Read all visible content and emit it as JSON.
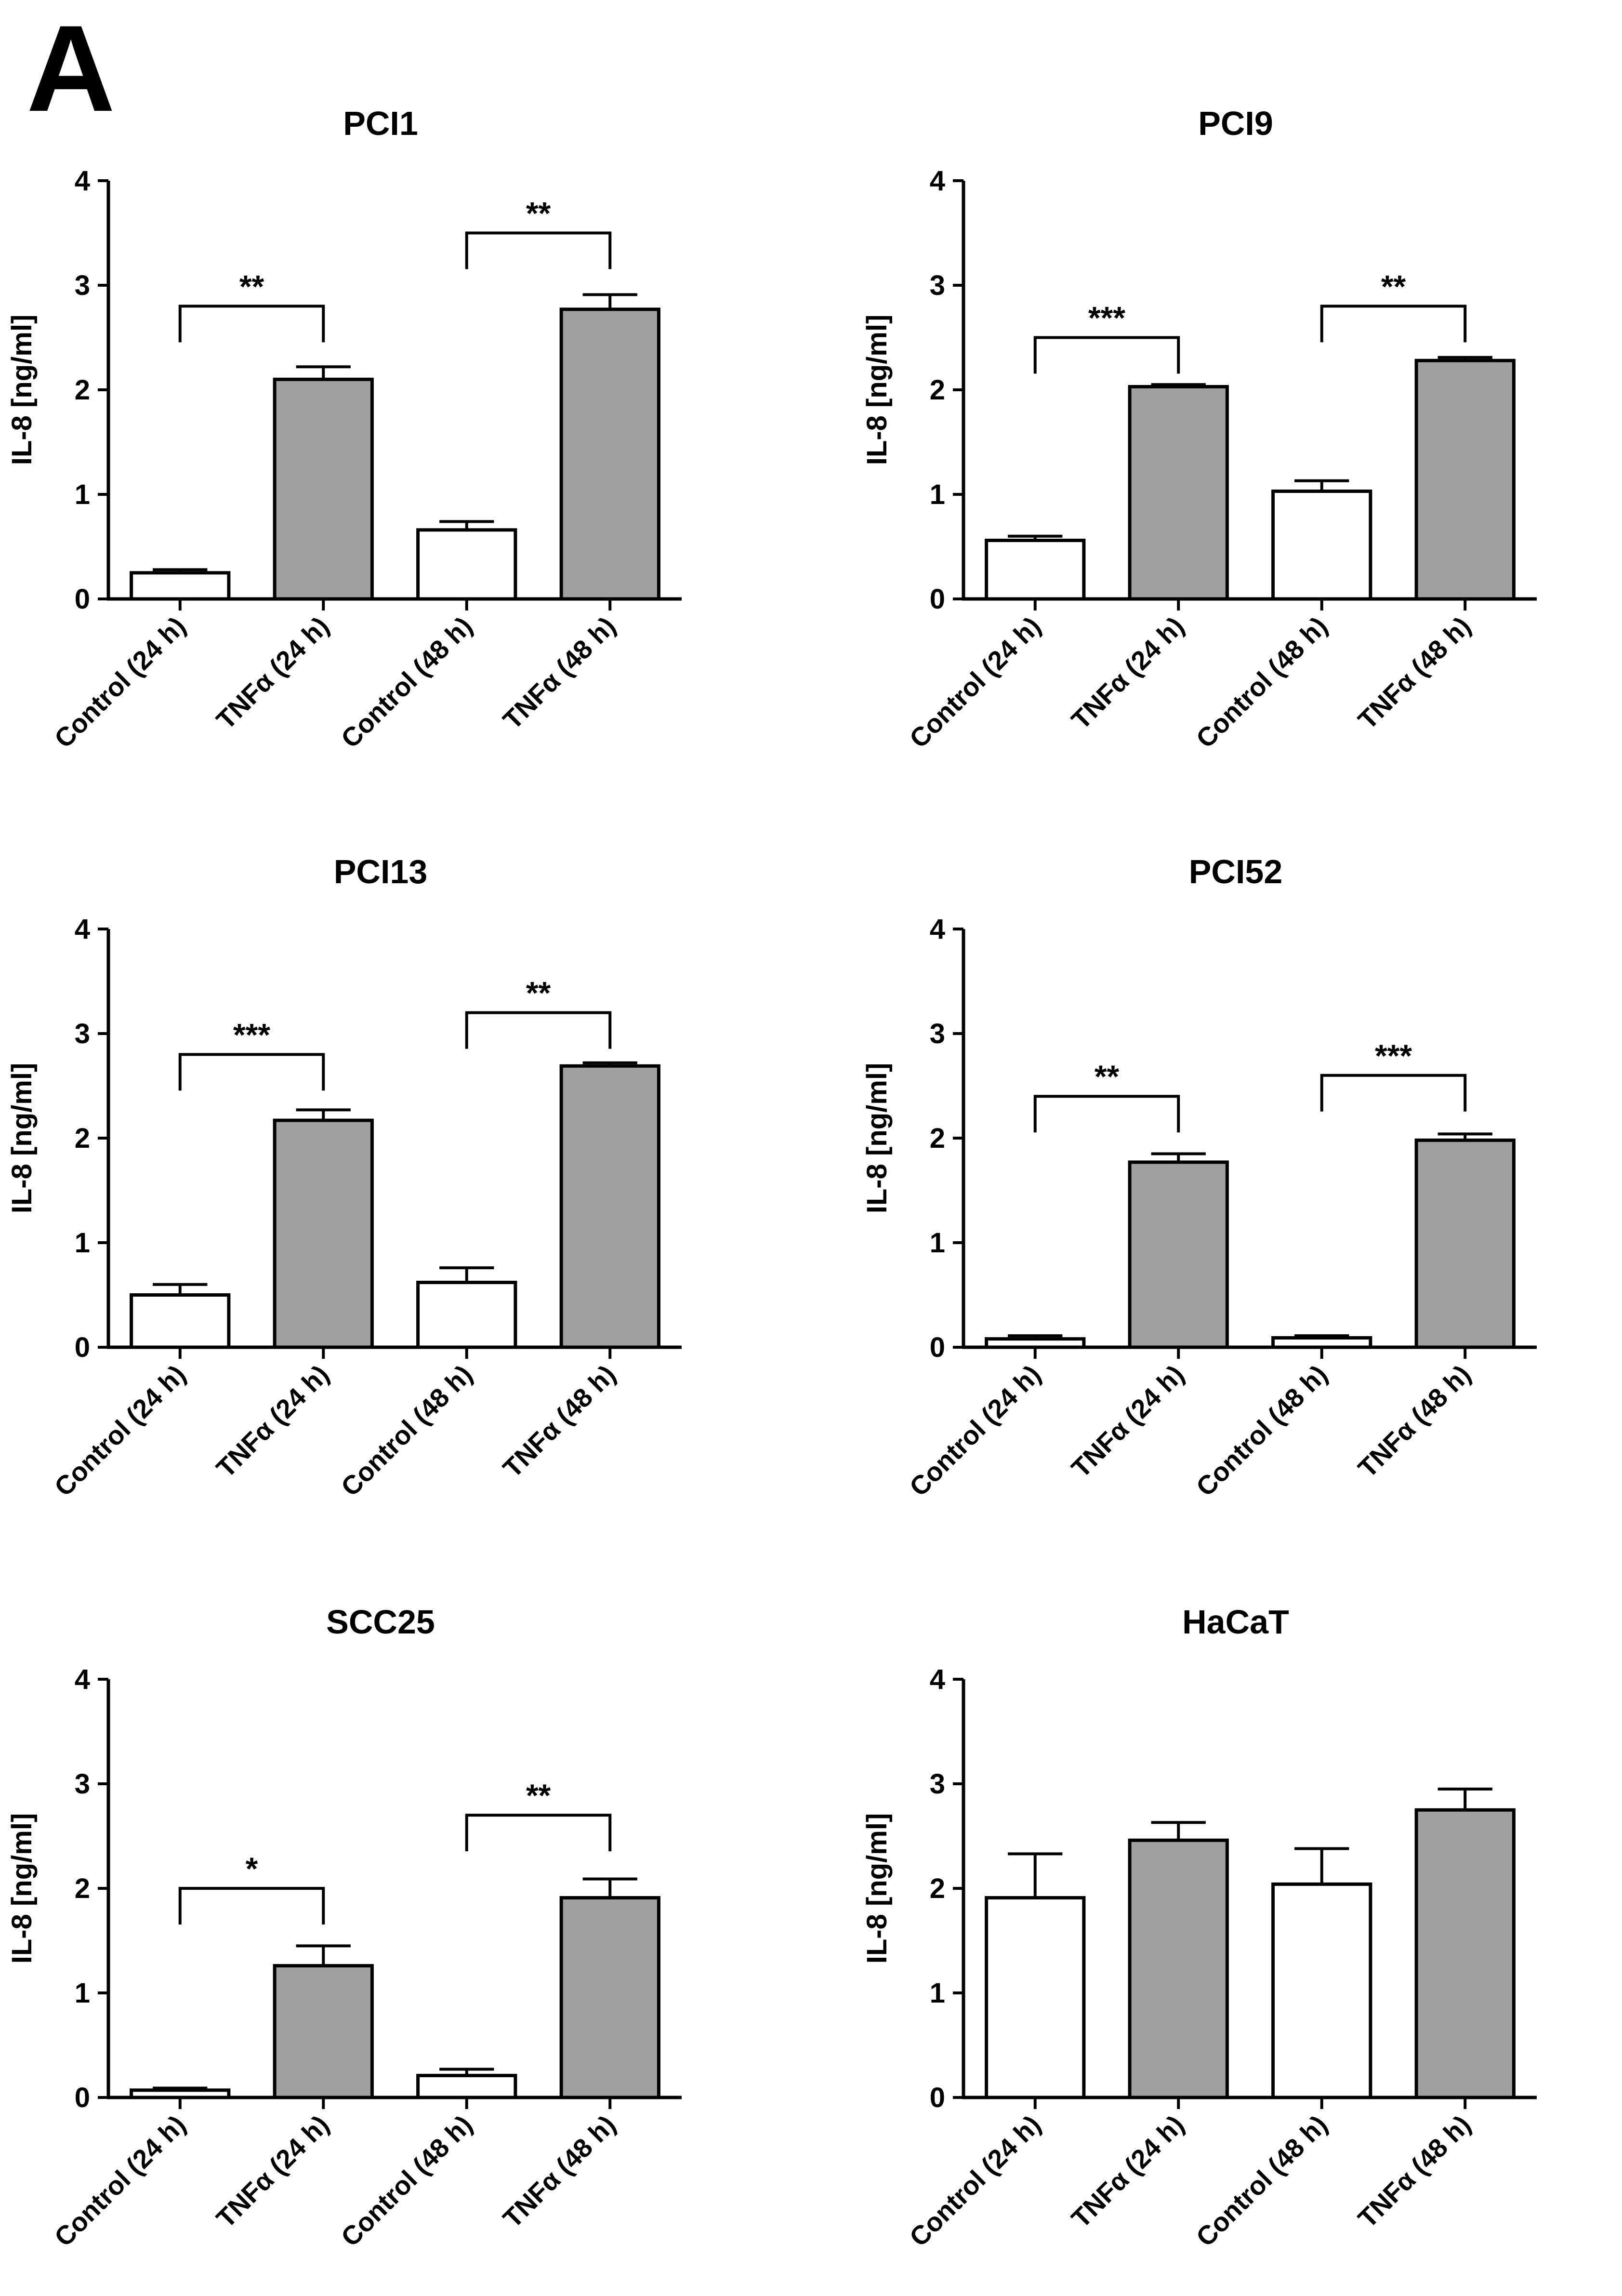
{
  "panel_label": "A",
  "chart_data": [
    {
      "type": "bar",
      "title": "PCI1",
      "ylabel": "IL-8 [ng/ml]",
      "ylim": [
        0,
        4
      ],
      "yticks": [
        0,
        1,
        2,
        3,
        4
      ],
      "categories": [
        "Control (24 h)",
        "TNFα (24 h)",
        "Control (48 h)",
        "TNFα (48 h)"
      ],
      "values": [
        0.25,
        2.1,
        0.66,
        2.77
      ],
      "errors": [
        0.03,
        0.12,
        0.08,
        0.14
      ],
      "fills": [
        "#ffffff",
        "#a0a0a0",
        "#ffffff",
        "#a0a0a0"
      ],
      "significance": [
        {
          "from": 0,
          "to": 1,
          "label": "**",
          "y": 2.8
        },
        {
          "from": 2,
          "to": 3,
          "label": "**",
          "y": 3.5
        }
      ]
    },
    {
      "type": "bar",
      "title": "PCI9",
      "ylabel": "IL-8 [ng/ml]",
      "ylim": [
        0,
        4
      ],
      "yticks": [
        0,
        1,
        2,
        3,
        4
      ],
      "categories": [
        "Control (24 h)",
        "TNFα (24 h)",
        "Control (48 h)",
        "TNFα (48 h)"
      ],
      "values": [
        0.56,
        2.03,
        1.03,
        2.28
      ],
      "errors": [
        0.04,
        0.02,
        0.1,
        0.03
      ],
      "fills": [
        "#ffffff",
        "#a0a0a0",
        "#ffffff",
        "#a0a0a0"
      ],
      "significance": [
        {
          "from": 0,
          "to": 1,
          "label": "***",
          "y": 2.5
        },
        {
          "from": 2,
          "to": 3,
          "label": "**",
          "y": 2.8
        }
      ]
    },
    {
      "type": "bar",
      "title": "PCI13",
      "ylabel": "IL-8 [ng/ml]",
      "ylim": [
        0,
        4
      ],
      "yticks": [
        0,
        1,
        2,
        3,
        4
      ],
      "categories": [
        "Control (24 h)",
        "TNFα (24 h)",
        "Control (48 h)",
        "TNFα (48 h)"
      ],
      "values": [
        0.5,
        2.17,
        0.62,
        2.69
      ],
      "errors": [
        0.1,
        0.1,
        0.14,
        0.03
      ],
      "fills": [
        "#ffffff",
        "#a0a0a0",
        "#ffffff",
        "#a0a0a0"
      ],
      "significance": [
        {
          "from": 0,
          "to": 1,
          "label": "***",
          "y": 2.8
        },
        {
          "from": 2,
          "to": 3,
          "label": "**",
          "y": 3.2
        }
      ]
    },
    {
      "type": "bar",
      "title": "PCI52",
      "ylabel": "IL-8 [ng/ml]",
      "ylim": [
        0,
        4
      ],
      "yticks": [
        0,
        1,
        2,
        3,
        4
      ],
      "categories": [
        "Control (24 h)",
        "TNFα (24 h)",
        "Control (48 h)",
        "TNFα (48 h)"
      ],
      "values": [
        0.08,
        1.77,
        0.09,
        1.98
      ],
      "errors": [
        0.03,
        0.08,
        0.02,
        0.06
      ],
      "fills": [
        "#ffffff",
        "#a0a0a0",
        "#ffffff",
        "#a0a0a0"
      ],
      "significance": [
        {
          "from": 0,
          "to": 1,
          "label": "**",
          "y": 2.4
        },
        {
          "from": 2,
          "to": 3,
          "label": "***",
          "y": 2.6
        }
      ]
    },
    {
      "type": "bar",
      "title": "SCC25",
      "ylabel": "IL-8 [ng/ml]",
      "ylim": [
        0,
        4
      ],
      "yticks": [
        0,
        1,
        2,
        3,
        4
      ],
      "categories": [
        "Control (24 h)",
        "TNFα (24 h)",
        "Control (48 h)",
        "TNFα (48 h)"
      ],
      "values": [
        0.07,
        1.26,
        0.21,
        1.91
      ],
      "errors": [
        0.02,
        0.19,
        0.06,
        0.18
      ],
      "fills": [
        "#ffffff",
        "#a0a0a0",
        "#ffffff",
        "#a0a0a0"
      ],
      "significance": [
        {
          "from": 0,
          "to": 1,
          "label": "*",
          "y": 2.0
        },
        {
          "from": 2,
          "to": 3,
          "label": "**",
          "y": 2.7
        }
      ]
    },
    {
      "type": "bar",
      "title": "HaCaT",
      "ylabel": "IL-8 [ng/ml]",
      "ylim": [
        0,
        4
      ],
      "yticks": [
        0,
        1,
        2,
        3,
        4
      ],
      "categories": [
        "Control (24 h)",
        "TNFα (24 h)",
        "Control (48 h)",
        "TNFα (48 h)"
      ],
      "values": [
        1.91,
        2.46,
        2.04,
        2.75
      ],
      "errors": [
        0.42,
        0.17,
        0.34,
        0.2
      ],
      "fills": [
        "#ffffff",
        "#a0a0a0",
        "#ffffff",
        "#a0a0a0"
      ],
      "significance": []
    }
  ]
}
